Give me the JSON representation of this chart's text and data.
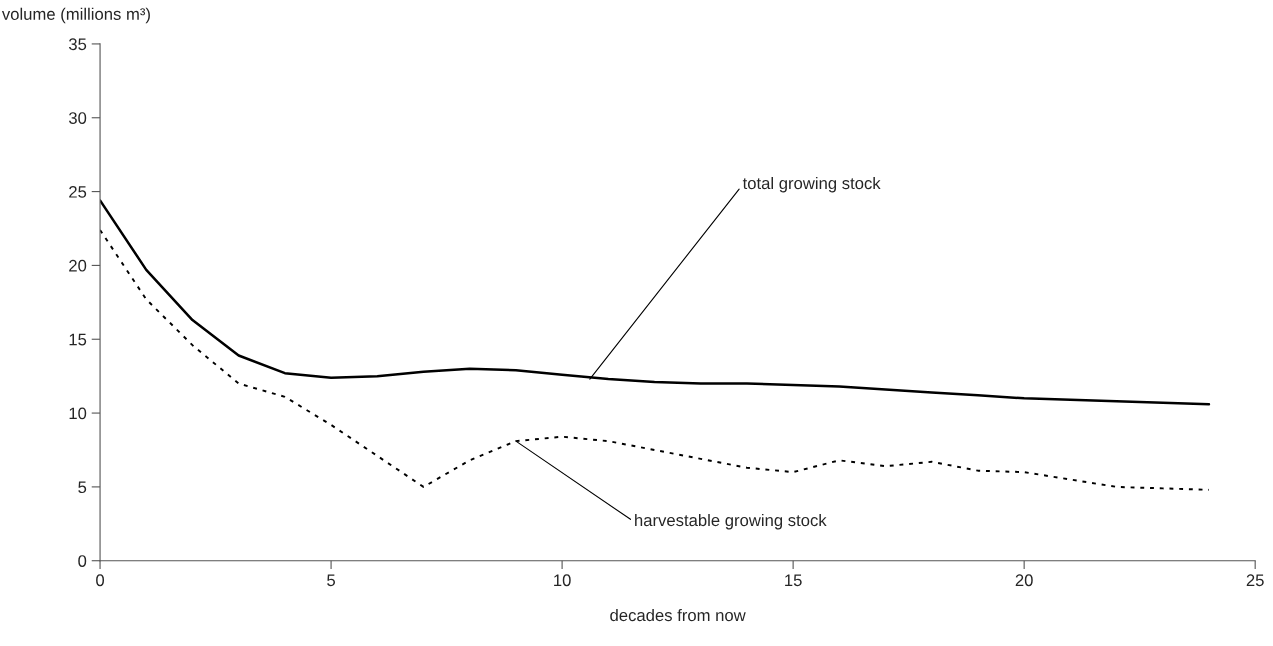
{
  "chart_data": {
    "type": "line",
    "xlabel": "decades from now",
    "ylabel": "volume (millions m³)",
    "x": [
      0,
      1,
      2,
      3,
      4,
      5,
      6,
      7,
      8,
      9,
      10,
      11,
      12,
      13,
      14,
      15,
      16,
      17,
      18,
      19,
      20,
      21,
      22,
      23,
      24
    ],
    "series": [
      {
        "name": "total growing stock",
        "color": "#000000",
        "line_style": "solid",
        "values": [
          24.4,
          19.7,
          16.3,
          13.9,
          12.7,
          12.4,
          12.5,
          12.8,
          13.0,
          12.9,
          12.6,
          12.3,
          12.1,
          12.0,
          12.0,
          11.9,
          11.8,
          11.6,
          11.4,
          11.2,
          11.0,
          10.9,
          10.8,
          10.7,
          10.6
        ]
      },
      {
        "name": "harvestable growing stock",
        "color": "#000000",
        "line_style": "dotted",
        "values": [
          22.4,
          17.7,
          14.6,
          12.0,
          11.1,
          9.2,
          7.1,
          5.0,
          6.8,
          8.1,
          8.4,
          8.1,
          7.5,
          6.9,
          6.3,
          6.0,
          6.8,
          6.4,
          6.7,
          6.1,
          6.0,
          5.5,
          5.0,
          4.9,
          4.8
        ]
      }
    ],
    "xlim": [
      0,
      25
    ],
    "xticks": [
      0,
      5,
      10,
      15,
      20,
      25
    ],
    "ylim": [
      0,
      35
    ],
    "yticks": [
      0,
      5,
      10,
      15,
      20,
      25,
      30,
      35
    ],
    "grid": false,
    "legend": false,
    "marker": "none"
  }
}
